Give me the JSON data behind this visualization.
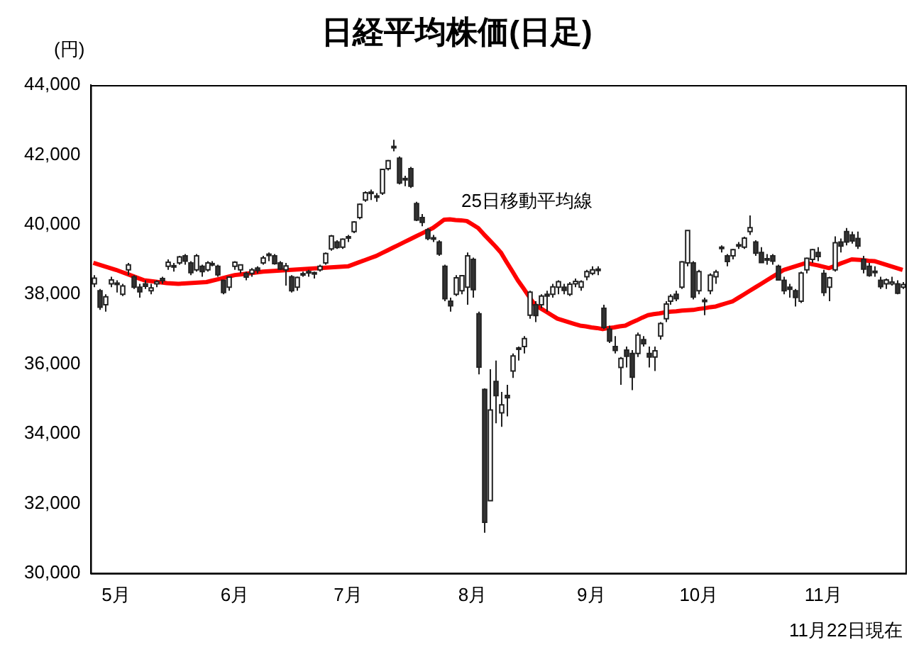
{
  "chart_data": {
    "type": "candlestick",
    "title": "日経平均株価(日足)",
    "ylabel": "(円)",
    "annotations": [
      "11月22日現在"
    ],
    "categories": [
      null,
      null,
      null,
      null,
      "5月",
      null,
      null,
      null,
      null,
      null,
      null,
      null,
      null,
      null,
      null,
      null,
      null,
      null,
      null,
      null,
      null,
      null,
      null,
      null,
      null,
      "6月",
      null,
      null,
      null,
      null,
      null,
      null,
      null,
      null,
      null,
      null,
      null,
      null,
      null,
      null,
      null,
      null,
      null,
      null,
      null,
      "7月",
      null,
      null,
      null,
      null,
      null,
      null,
      null,
      null,
      null,
      null,
      null,
      null,
      null,
      null,
      null,
      null,
      null,
      null,
      null,
      null,
      null,
      "8月",
      null,
      null,
      null,
      null,
      null,
      null,
      null,
      null,
      null,
      null,
      null,
      null,
      null,
      null,
      null,
      null,
      null,
      null,
      null,
      null,
      "9月",
      null,
      null,
      null,
      null,
      null,
      null,
      null,
      null,
      null,
      null,
      null,
      null,
      null,
      null,
      null,
      null,
      null,
      null,
      "10月",
      null,
      null,
      null,
      null,
      null,
      null,
      null,
      null,
      null,
      null,
      null,
      null,
      null,
      null,
      null,
      null,
      null,
      null,
      null,
      null,
      null,
      "11月",
      null,
      null,
      null,
      null,
      null,
      null,
      null,
      null,
      null,
      null,
      null,
      null,
      null,
      null
    ],
    "ohlc": [
      [
        38300,
        38550,
        38200,
        38460
      ],
      [
        38100,
        38150,
        37550,
        37630
      ],
      [
        37700,
        38000,
        37500,
        37930
      ],
      [
        38300,
        38500,
        38200,
        38410
      ],
      [
        38300,
        38400,
        38050,
        38270
      ],
      [
        38000,
        38300,
        37950,
        38240
      ],
      [
        38700,
        38900,
        38550,
        38840
      ],
      [
        38500,
        38550,
        38150,
        38200
      ],
      [
        38200,
        38300,
        37900,
        38070
      ],
      [
        38300,
        38400,
        38150,
        38230
      ],
      [
        38100,
        38300,
        38000,
        38180
      ],
      [
        38300,
        38400,
        38200,
        38360
      ],
      [
        38450,
        38500,
        38300,
        38390
      ],
      [
        38800,
        39000,
        38700,
        38920
      ],
      [
        38800,
        38900,
        38650,
        38790
      ],
      [
        38900,
        39100,
        38850,
        39070
      ],
      [
        39100,
        39150,
        38850,
        38950
      ],
      [
        38900,
        38950,
        38550,
        38620
      ],
      [
        38700,
        39150,
        38650,
        39100
      ],
      [
        38800,
        38850,
        38500,
        38650
      ],
      [
        38700,
        38950,
        38650,
        38900
      ],
      [
        38850,
        38950,
        38800,
        38860
      ],
      [
        38800,
        38850,
        38500,
        38560
      ],
      [
        38400,
        38400,
        38000,
        38050
      ],
      [
        38200,
        38500,
        38100,
        38490
      ],
      [
        38800,
        38950,
        38700,
        38920
      ],
      [
        38700,
        38850,
        38600,
        38840
      ],
      [
        38600,
        38650,
        38400,
        38490
      ],
      [
        38600,
        38750,
        38500,
        38700
      ],
      [
        38750,
        38800,
        38600,
        38680
      ],
      [
        38900,
        39100,
        38850,
        39040
      ],
      [
        39100,
        39200,
        38950,
        39130
      ],
      [
        39100,
        39150,
        38850,
        38880
      ],
      [
        38900,
        38950,
        38700,
        38720
      ],
      [
        38700,
        38900,
        38250,
        38810
      ],
      [
        38500,
        38550,
        38050,
        38100
      ],
      [
        38200,
        38500,
        38100,
        38480
      ],
      [
        38550,
        38650,
        38500,
        38570
      ],
      [
        38600,
        38700,
        38500,
        38630
      ],
      [
        38600,
        38650,
        38450,
        38600
      ],
      [
        38700,
        38850,
        38650,
        38800
      ],
      [
        38900,
        39200,
        38850,
        39170
      ],
      [
        39300,
        39700,
        39250,
        39670
      ],
      [
        39500,
        39550,
        39300,
        39340
      ],
      [
        39350,
        39600,
        39300,
        39580
      ],
      [
        39600,
        39700,
        39500,
        39630
      ],
      [
        39800,
        40100,
        39750,
        40070
      ],
      [
        40200,
        40600,
        40150,
        40580
      ],
      [
        40700,
        40950,
        40650,
        40910
      ],
      [
        40900,
        41000,
        40700,
        40910
      ],
      [
        40800,
        40900,
        40650,
        40780
      ],
      [
        40900,
        41600,
        40850,
        41580
      ],
      [
        41600,
        41850,
        41550,
        41830
      ],
      [
        42200,
        42430,
        42100,
        42220
      ],
      [
        41900,
        41950,
        41150,
        41190
      ],
      [
        41300,
        41400,
        41100,
        41280
      ],
      [
        41600,
        41650,
        41050,
        41100
      ],
      [
        40600,
        40650,
        40100,
        40130
      ],
      [
        40200,
        40300,
        39950,
        40060
      ],
      [
        39850,
        39900,
        39550,
        39600
      ],
      [
        39600,
        39700,
        39500,
        39590
      ],
      [
        39500,
        39550,
        39100,
        39150
      ],
      [
        38800,
        38850,
        37800,
        37870
      ],
      [
        37800,
        37900,
        37500,
        37670
      ],
      [
        38000,
        38550,
        37950,
        38470
      ],
      [
        38100,
        38550,
        38000,
        38530
      ],
      [
        38200,
        39200,
        37700,
        39100
      ],
      [
        39000,
        39050,
        37900,
        38130
      ],
      [
        37440,
        37500,
        35700,
        35910
      ],
      [
        35270,
        35300,
        31160,
        31460
      ],
      [
        32080,
        35850,
        32080,
        34680
      ],
      [
        35500,
        36100,
        34300,
        35090
      ],
      [
        34600,
        35200,
        34200,
        34830
      ],
      [
        35100,
        35400,
        34500,
        35030
      ],
      [
        35800,
        36300,
        35600,
        36230
      ],
      [
        36400,
        36500,
        36100,
        36440
      ],
      [
        36500,
        36800,
        36300,
        36730
      ],
      [
        37400,
        38100,
        37300,
        38060
      ],
      [
        37700,
        37800,
        37200,
        37390
      ],
      [
        37700,
        38000,
        37600,
        37950
      ],
      [
        38000,
        38100,
        37500,
        37950
      ],
      [
        38000,
        38300,
        37900,
        38210
      ],
      [
        38200,
        38400,
        38000,
        38360
      ],
      [
        38200,
        38300,
        38000,
        38110
      ],
      [
        38000,
        38350,
        37950,
        38290
      ],
      [
        38300,
        38450,
        38200,
        38370
      ],
      [
        38200,
        38400,
        38100,
        38360
      ],
      [
        38500,
        38700,
        38400,
        38650
      ],
      [
        38600,
        38800,
        38550,
        38700
      ],
      [
        38700,
        38800,
        38550,
        38690
      ],
      [
        37600,
        37700,
        37000,
        37050
      ],
      [
        37000,
        37100,
        36600,
        36660
      ],
      [
        36500,
        36800,
        36300,
        36390
      ],
      [
        35900,
        36200,
        35400,
        36160
      ],
      [
        36400,
        36500,
        35900,
        36220
      ],
      [
        36300,
        36400,
        35250,
        35620
      ],
      [
        36300,
        36900,
        36200,
        36830
      ],
      [
        36700,
        36800,
        36500,
        36580
      ],
      [
        36300,
        36500,
        35900,
        36200
      ],
      [
        36200,
        36500,
        35800,
        36380
      ],
      [
        36800,
        37200,
        36700,
        37160
      ],
      [
        37300,
        37800,
        37200,
        37720
      ],
      [
        37800,
        38000,
        37700,
        37940
      ],
      [
        38000,
        38100,
        37800,
        37870
      ],
      [
        38200,
        38950,
        38150,
        38930
      ],
      [
        38900,
        39830,
        38800,
        39830
      ],
      [
        38900,
        38950,
        37850,
        37920
      ],
      [
        38100,
        38700,
        38000,
        38650
      ],
      [
        37800,
        37900,
        37400,
        37810
      ],
      [
        38100,
        38600,
        38000,
        38550
      ],
      [
        38500,
        38700,
        38300,
        38640
      ],
      [
        39300,
        39400,
        39200,
        39330
      ],
      [
        39100,
        39150,
        38800,
        38940
      ],
      [
        39100,
        39300,
        39000,
        39280
      ],
      [
        39400,
        39500,
        39300,
        39380
      ],
      [
        39350,
        39650,
        39300,
        39610
      ],
      [
        39800,
        40260,
        39700,
        39910
      ],
      [
        39500,
        39550,
        39100,
        39180
      ],
      [
        39200,
        39350,
        38900,
        38910
      ],
      [
        39000,
        39150,
        38850,
        38980
      ],
      [
        39100,
        39150,
        38850,
        38950
      ],
      [
        38800,
        38850,
        38400,
        38410
      ],
      [
        38400,
        38500,
        38000,
        38100
      ],
      [
        38200,
        38300,
        37900,
        38140
      ],
      [
        38100,
        38150,
        37650,
        37910
      ],
      [
        37800,
        38650,
        37750,
        38610
      ],
      [
        38700,
        39050,
        38600,
        39030
      ],
      [
        39000,
        39300,
        38900,
        39280
      ],
      [
        39200,
        39350,
        38950,
        39080
      ],
      [
        38600,
        38700,
        37950,
        38050
      ],
      [
        38200,
        38500,
        37800,
        38470
      ],
      [
        38700,
        39660,
        38650,
        39480
      ],
      [
        39500,
        39600,
        39200,
        39380
      ],
      [
        39800,
        39900,
        39400,
        39500
      ],
      [
        39700,
        39800,
        39450,
        39530
      ],
      [
        39600,
        39800,
        39300,
        39380
      ],
      [
        39000,
        39100,
        38600,
        38720
      ],
      [
        38800,
        38900,
        38500,
        38540
      ],
      [
        38600,
        38800,
        38500,
        38640
      ],
      [
        38400,
        38500,
        38150,
        38220
      ],
      [
        38300,
        38450,
        38150,
        38410
      ],
      [
        38300,
        38500,
        38250,
        38350
      ],
      [
        38300,
        38400,
        38000,
        38030
      ],
      [
        38200,
        38350,
        38150,
        38280
      ]
    ],
    "series": [
      {
        "name": "25日移動平均線",
        "type": "line",
        "color": "#ff0000",
        "values": [
          38900,
          38850,
          38800,
          38750,
          38700,
          38640,
          38580,
          38520,
          38460,
          38400,
          38380,
          38360,
          38340,
          38320,
          38310,
          38300,
          38310,
          38320,
          38330,
          38340,
          38350,
          38390,
          38430,
          38470,
          38510,
          38550,
          38570,
          38590,
          38610,
          38630,
          38650,
          38660,
          38670,
          38680,
          38690,
          38700,
          38710,
          38720,
          38730,
          38740,
          38750,
          38760,
          38770,
          38780,
          38790,
          38800,
          38860,
          38920,
          38980,
          39040,
          39100,
          39180,
          39260,
          39340,
          39420,
          39500,
          39580,
          39660,
          39740,
          39820,
          39900,
          40020,
          40140,
          40150,
          40130,
          40120,
          40100,
          40000,
          39900,
          39720,
          39550,
          39380,
          39200,
          38930,
          38670,
          38400,
          38170,
          37930,
          37700,
          37600,
          37500,
          37400,
          37300,
          37250,
          37200,
          37150,
          37100,
          37080,
          37050,
          37030,
          37000,
          37030,
          37050,
          37080,
          37100,
          37180,
          37250,
          37330,
          37400,
          37430,
          37450,
          37480,
          37500,
          37510,
          37530,
          37540,
          37550,
          37580,
          37600,
          37630,
          37650,
          37700,
          37750,
          37800,
          37900,
          38000,
          38100,
          38200,
          38300,
          38400,
          38500,
          38600,
          38700,
          38750,
          38800,
          38850,
          38900,
          38860,
          38830,
          38790,
          38750,
          38810,
          38880,
          38940,
          39000,
          38990,
          38980,
          38960,
          38950,
          38900,
          38850,
          38800,
          38750,
          38700
        ]
      }
    ],
    "ylim": [
      30000,
      44000
    ],
    "yticks": [
      {
        "value": 30000,
        "label": "30,000"
      },
      {
        "value": 32000,
        "label": "32,000"
      },
      {
        "value": 34000,
        "label": "34,000"
      },
      {
        "value": 36000,
        "label": "36,000"
      },
      {
        "value": 38000,
        "label": "38,000"
      },
      {
        "value": 40000,
        "label": "40,000"
      },
      {
        "value": 42000,
        "label": "42,000"
      },
      {
        "value": 44000,
        "label": "44,000"
      }
    ],
    "grid": false,
    "legend": false,
    "marker": "none"
  }
}
